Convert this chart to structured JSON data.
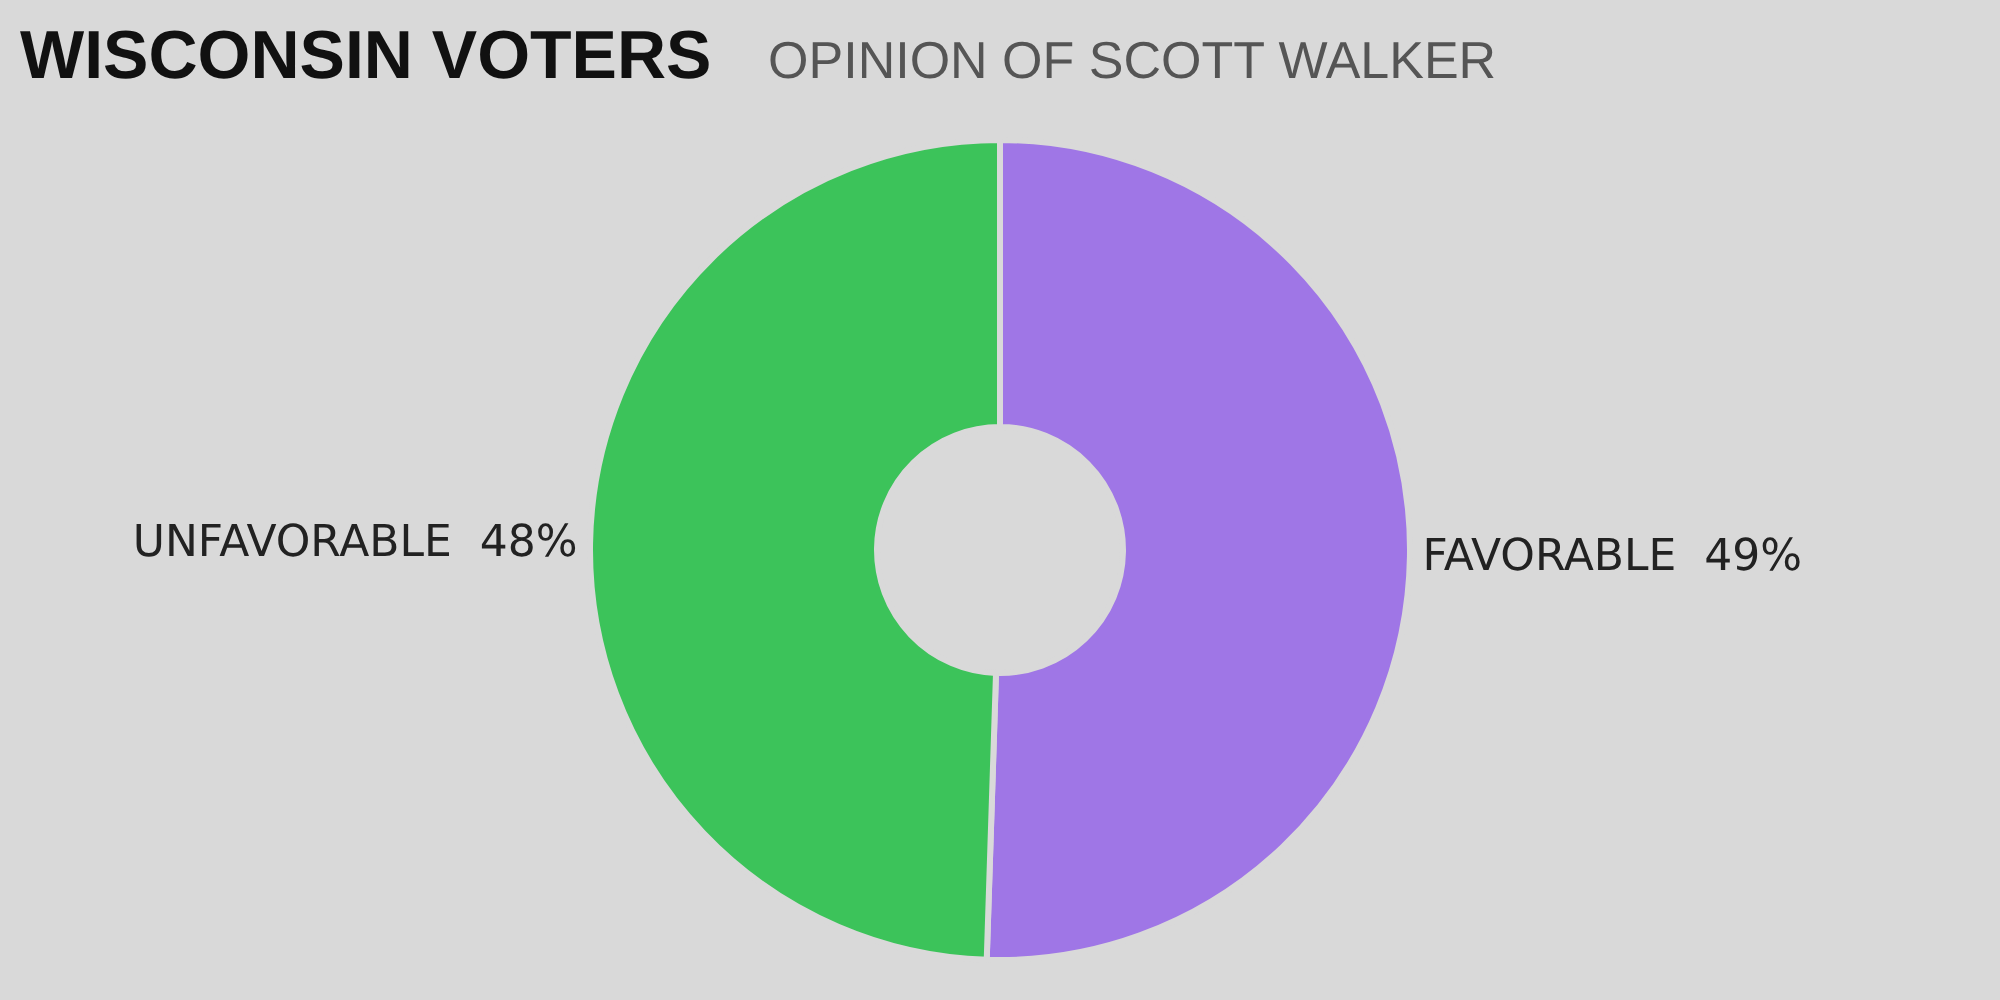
{
  "chart_data": {
    "type": "donut",
    "title": "WISCONSIN VOTERS",
    "subtitle": "OPINION OF SCOTT WALKER",
    "categories": [
      "FAVORABLE",
      "UNFAVORABLE"
    ],
    "values": [
      49,
      48
    ],
    "value_labels": [
      "49%",
      "48%"
    ],
    "colors": [
      "#9f76e6",
      "#3cc35a"
    ],
    "legend": false
  }
}
